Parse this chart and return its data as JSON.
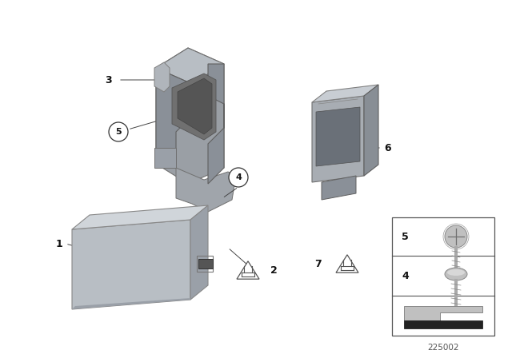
{
  "background_color": "#ffffff",
  "diagram_number": "225002",
  "gray_light": "#c8c8c8",
  "gray_mid": "#a0a0a0",
  "gray_dark": "#787878",
  "gray_darker": "#606060",
  "line_color": "#444444",
  "label_color": "#111111"
}
